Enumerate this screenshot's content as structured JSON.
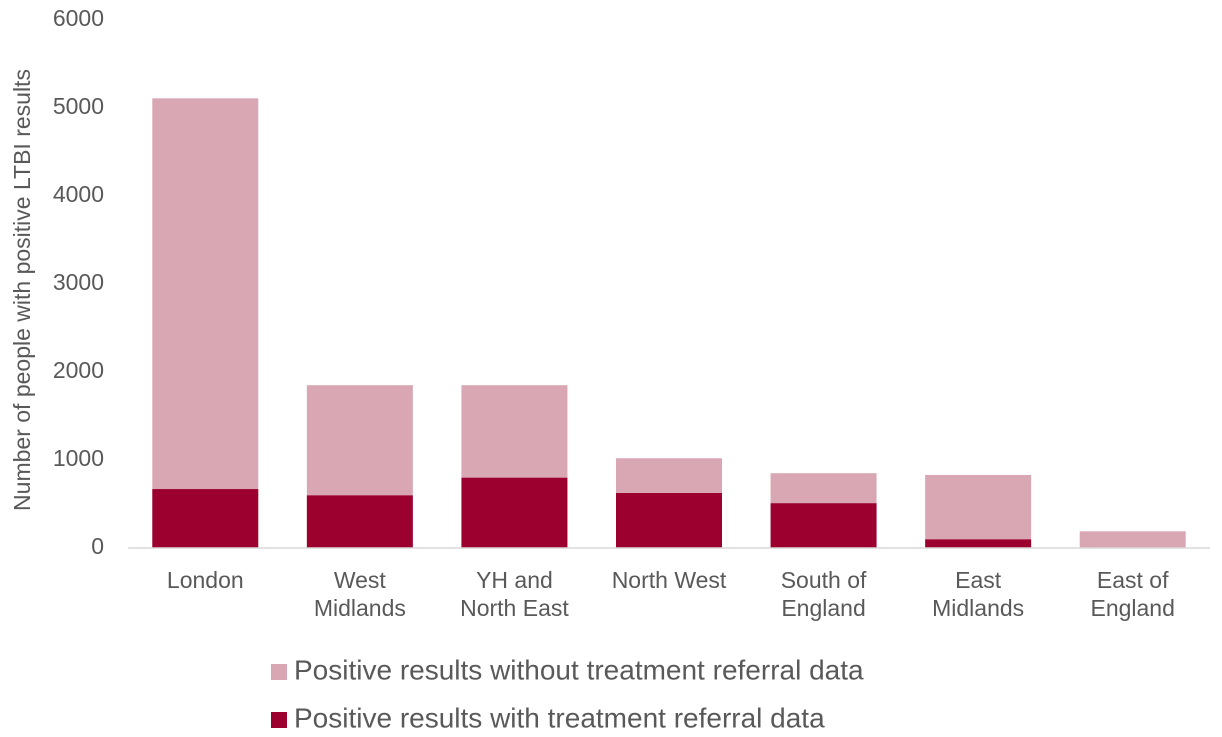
{
  "chart_data": {
    "type": "stacked-bar",
    "y_axis_label": "Number of people with positive LTBI results",
    "categories": [
      "London",
      "West Midlands",
      "YH and North East",
      "North West",
      "South of England",
      "East Midlands",
      "East of England"
    ],
    "series": [
      {
        "name": "Positive results without treatment referral data",
        "color": "#d9a7b4",
        "values": [
          4440,
          1250,
          1050,
          395,
          340,
          730,
          190
        ]
      },
      {
        "name": "Positive results with treatment referral data",
        "color": "#9b002f",
        "values": [
          670,
          600,
          800,
          625,
          510,
          100,
          0
        ]
      }
    ],
    "ylim": [
      0,
      6000
    ],
    "yticks": [
      0,
      1000,
      2000,
      3000,
      4000,
      5000,
      6000
    ],
    "legend": "bottom"
  }
}
